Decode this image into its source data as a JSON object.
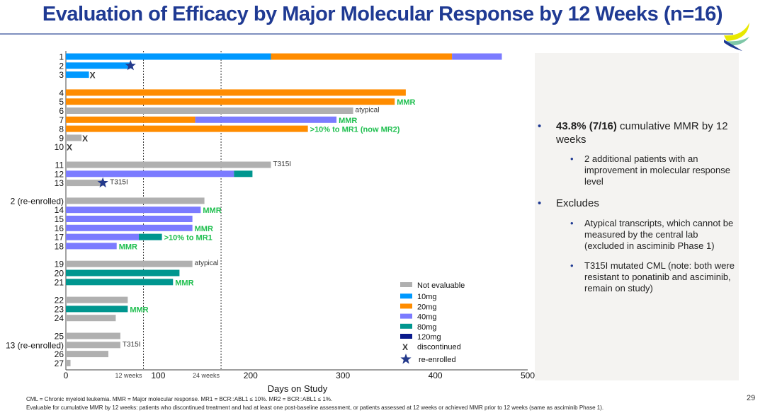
{
  "title": "Evaluation of Efficacy by Major Molecular Response by 12 Weeks (n=16)",
  "page_number": "29",
  "footnotes": [
    "CML = Chronic myeloid leukemia. MMR = Major molecular response. MR1 = BCR::ABL1 ≤ 10%. MR2 = BCR::ABL1 ≤ 1%.",
    "Evaluable for cumulative MMR by 12 weeks: patients who discontinued treatment and had at least one post-baseline assessment, or patients assessed at 12 weeks or achieved MMR prior to 12 weeks (same as asciminib Phase 1)."
  ],
  "panel": {
    "bullet1_bold": "43.8% (7/16)",
    "bullet1_rest": " cumulative MMR by 12 weeks",
    "sub1": "2 additional patients with an improvement in molecular response level",
    "bullet2": "Excludes",
    "sub2": "Atypical transcripts, which cannot be measured by the central lab (excluded in asciminib Phase 1)",
    "sub3": "T315I mutated CML (note: both were resistant to ponatinib and asciminib, remain on study)"
  },
  "chart_data": {
    "type": "swimmer",
    "xlabel": "Days on Study",
    "xlim": [
      0,
      500
    ],
    "xticks": [
      0,
      100,
      200,
      300,
      400,
      500
    ],
    "reference_lines": [
      {
        "x": 84,
        "label": "12 weeks"
      },
      {
        "x": 168,
        "label": "24 weeks"
      }
    ],
    "colors": {
      "Not evaluable": "#b0b0b0",
      "10mg": "#0099ff",
      "20mg": "#ff8c00",
      "40mg": "#7b7bff",
      "80mg": "#00968f",
      "120mg": "#0a1a8c",
      "annotation": "#1fbf4f",
      "marker": "#243a8c"
    },
    "legend": {
      "position": "bottom-right",
      "items": [
        "Not evaluable",
        "10mg",
        "20mg",
        "40mg",
        "80mg",
        "120mg"
      ],
      "discontinued": "discontinued",
      "reenrolled": "re-enrolled",
      "discontinued_symbol": "X"
    },
    "rows": [
      {
        "label": "1",
        "group": 0,
        "segments": [
          [
            "10mg",
            0,
            222
          ],
          [
            "20mg",
            222,
            418
          ],
          [
            "40mg",
            418,
            472
          ]
        ]
      },
      {
        "label": "2",
        "group": 0,
        "segments": [
          [
            "10mg",
            0,
            70
          ]
        ],
        "marker": "re-enrolled"
      },
      {
        "label": "3",
        "group": 0,
        "segments": [
          [
            "10mg",
            0,
            25
          ]
        ],
        "marker": "discontinued"
      },
      {
        "label": "4",
        "group": 1,
        "segments": [
          [
            "20mg",
            0,
            368
          ]
        ]
      },
      {
        "label": "5",
        "group": 1,
        "segments": [
          [
            "20mg",
            0,
            356
          ]
        ],
        "annotation": "MMR"
      },
      {
        "label": "6",
        "group": 1,
        "segments": [
          [
            "Not evaluable",
            0,
            311
          ]
        ],
        "note": "atypical"
      },
      {
        "label": "7",
        "group": 1,
        "segments": [
          [
            "20mg",
            0,
            140
          ],
          [
            "40mg",
            140,
            293
          ]
        ],
        "annotation": "MMR"
      },
      {
        "label": "8",
        "group": 1,
        "segments": [
          [
            "20mg",
            0,
            262
          ]
        ],
        "annotation": ">10% to MR1 (now MR2)"
      },
      {
        "label": "9",
        "group": 1,
        "segments": [
          [
            "Not evaluable",
            0,
            17
          ]
        ],
        "marker": "discontinued"
      },
      {
        "label": "10",
        "group": 1,
        "segments": [],
        "marker": "discontinued"
      },
      {
        "label": "11",
        "group": 2,
        "segments": [
          [
            "Not evaluable",
            0,
            222
          ]
        ],
        "note": "T315I"
      },
      {
        "label": "12",
        "group": 2,
        "segments": [
          [
            "40mg",
            0,
            182
          ],
          [
            "80mg",
            182,
            202
          ]
        ]
      },
      {
        "label": "13",
        "group": 2,
        "segments": [
          [
            "Not evaluable",
            0,
            40
          ]
        ],
        "marker": "re-enrolled",
        "note": "T315I"
      },
      {
        "label": "2 (re-enrolled)",
        "group": 3,
        "segments": [
          [
            "Not evaluable",
            0,
            150
          ]
        ]
      },
      {
        "label": "14",
        "group": 3,
        "segments": [
          [
            "40mg",
            0,
            146
          ]
        ],
        "annotation": "MMR"
      },
      {
        "label": "15",
        "group": 3,
        "segments": [
          [
            "40mg",
            0,
            137
          ]
        ]
      },
      {
        "label": "16",
        "group": 3,
        "segments": [
          [
            "40mg",
            0,
            137
          ]
        ],
        "annotation": "MMR"
      },
      {
        "label": "17",
        "group": 3,
        "segments": [
          [
            "40mg",
            0,
            79
          ],
          [
            "80mg",
            79,
            104
          ]
        ],
        "annotation": ">10% to MR1"
      },
      {
        "label": "18",
        "group": 3,
        "segments": [
          [
            "40mg",
            0,
            55
          ]
        ],
        "annotation": "MMR"
      },
      {
        "label": "19",
        "group": 4,
        "segments": [
          [
            "Not evaluable",
            0,
            137
          ]
        ],
        "note": "atypical"
      },
      {
        "label": "20",
        "group": 4,
        "segments": [
          [
            "80mg",
            0,
            123
          ]
        ]
      },
      {
        "label": "21",
        "group": 4,
        "segments": [
          [
            "80mg",
            0,
            116
          ]
        ],
        "annotation": "MMR"
      },
      {
        "label": "22",
        "group": 5,
        "segments": [
          [
            "Not evaluable",
            0,
            67
          ]
        ]
      },
      {
        "label": "23",
        "group": 5,
        "segments": [
          [
            "80mg",
            0,
            67
          ]
        ],
        "annotation": "MMR"
      },
      {
        "label": "24",
        "group": 5,
        "segments": [
          [
            "Not evaluable",
            0,
            54
          ]
        ]
      },
      {
        "label": "25",
        "group": 6,
        "segments": [
          [
            "Not evaluable",
            0,
            59
          ]
        ]
      },
      {
        "label": "13 (re-enrolled)",
        "group": 6,
        "segments": [
          [
            "Not evaluable",
            0,
            59
          ]
        ],
        "note": "T315I"
      },
      {
        "label": "26",
        "group": 6,
        "segments": [
          [
            "Not evaluable",
            0,
            46
          ]
        ]
      },
      {
        "label": "27",
        "group": 6,
        "segments": [
          [
            "Not evaluable",
            0,
            5
          ]
        ]
      }
    ]
  }
}
